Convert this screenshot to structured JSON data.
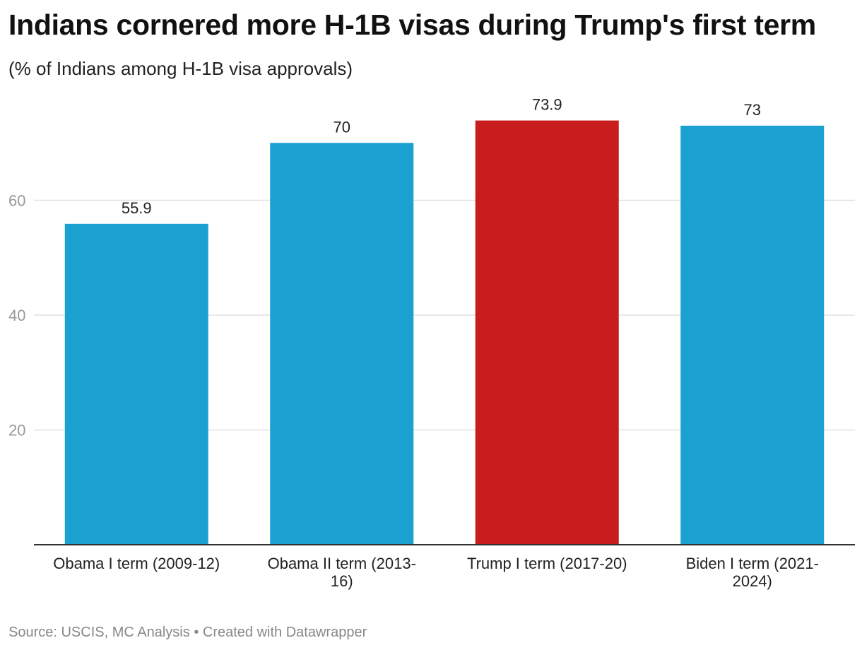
{
  "title": "Indians cornered more H-1B visas during Trump's first term",
  "subtitle": "(% of Indians among H-1B visa approvals)",
  "footer": {
    "source": "Source: USCIS, MC Analysis",
    "separator": "•",
    "credit": "Created with Datawrapper"
  },
  "colors": {
    "default_bar": "#1aa1cf",
    "highlight_bar": "#c71d1d",
    "gridline": "#e2e2e2",
    "axis": "#333333",
    "tick_label": "#999999"
  },
  "chart_data": {
    "type": "bar",
    "title": "Indians cornered more H-1B visas during Trump's first term",
    "subtitle": "(% of Indians among H-1B visa approvals)",
    "xlabel": "",
    "ylabel": "",
    "ylim": [
      0,
      80
    ],
    "yticks": [
      20,
      40,
      60
    ],
    "grid": true,
    "categories": [
      [
        "Obama I term (2009-12)"
      ],
      [
        "Obama II term (2013-",
        "16)"
      ],
      [
        "Trump I term (2017-20)"
      ],
      [
        "Biden I term (2021-",
        "2024)"
      ]
    ],
    "values": [
      55.9,
      70,
      73.9,
      73
    ],
    "value_labels": [
      "55.9",
      "70",
      "73.9",
      "73"
    ],
    "highlighted": [
      false,
      false,
      true,
      false
    ]
  }
}
